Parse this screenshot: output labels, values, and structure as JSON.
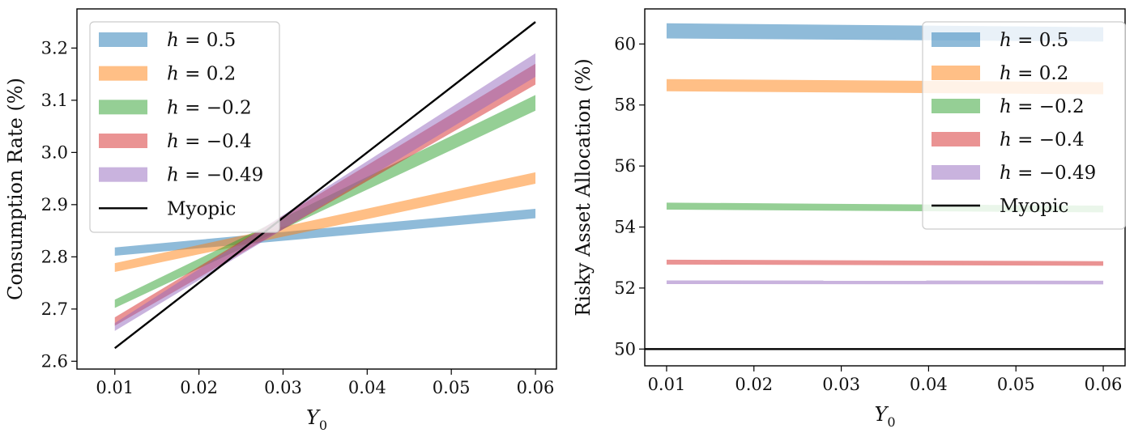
{
  "chart_data": [
    {
      "type": "line",
      "xlabel": "Y0",
      "ylabel": "Consumption Rate (%)",
      "xlim": [
        0.0055,
        0.0625
      ],
      "ylim": [
        2.585,
        3.275
      ],
      "xticks": [
        0.01,
        0.02,
        0.03,
        0.04,
        0.05,
        0.06
      ],
      "xtick_labels": [
        "0.01",
        "0.02",
        "0.03",
        "0.04",
        "0.05",
        "0.06"
      ],
      "yticks": [
        2.6,
        2.7,
        2.8,
        2.9,
        3.0,
        3.1,
        3.2
      ],
      "ytick_labels": [
        "2.6",
        "2.7",
        "2.8",
        "2.9",
        "3.0",
        "3.1",
        "3.2"
      ],
      "legend_position": "top-left",
      "grid": false,
      "x": [
        0.01,
        0.06
      ],
      "series": [
        {
          "name": "h = 0.5",
          "color": "#1f77b4",
          "style": "band",
          "lower": [
            2.802,
            2.874
          ],
          "upper": [
            2.818,
            2.892
          ]
        },
        {
          "name": "h = 0.2",
          "color": "#ff7f0e",
          "style": "band",
          "lower": [
            2.771,
            2.94
          ],
          "upper": [
            2.788,
            2.962
          ]
        },
        {
          "name": "h = −0.2",
          "color": "#2ca02c",
          "style": "band",
          "lower": [
            2.702,
            3.08
          ],
          "upper": [
            2.718,
            3.11
          ]
        },
        {
          "name": "h = −0.4",
          "color": "#d62728",
          "style": "band",
          "lower": [
            2.668,
            3.13
          ],
          "upper": [
            2.684,
            3.17
          ]
        },
        {
          "name": "h = −0.49",
          "color": "#9467bd",
          "style": "band",
          "lower": [
            2.658,
            3.145
          ],
          "upper": [
            2.673,
            3.19
          ]
        },
        {
          "name": "Myopic",
          "color": "#000000",
          "style": "line",
          "values": [
            2.625,
            3.25
          ]
        }
      ]
    },
    {
      "type": "line",
      "xlabel": "Y0",
      "ylabel": "Risky Asset Allocation (%)",
      "xlim": [
        0.0075,
        0.0625
      ],
      "ylim": [
        49.45,
        61.15
      ],
      "xticks": [
        0.01,
        0.02,
        0.03,
        0.04,
        0.05,
        0.06
      ],
      "xtick_labels": [
        "0.01",
        "0.02",
        "0.03",
        "0.04",
        "0.05",
        "0.06"
      ],
      "yticks": [
        50,
        52,
        54,
        56,
        58,
        60
      ],
      "ytick_labels": [
        "50",
        "52",
        "54",
        "56",
        "58",
        "60"
      ],
      "legend_position": "top-right",
      "grid": false,
      "x": [
        0.01,
        0.06
      ],
      "series": [
        {
          "name": "h = 0.5",
          "color": "#1f77b4",
          "style": "band",
          "lower": [
            60.18,
            60.08
          ],
          "upper": [
            60.68,
            60.55
          ]
        },
        {
          "name": "h = 0.2",
          "color": "#ff7f0e",
          "style": "band",
          "lower": [
            58.45,
            58.35
          ],
          "upper": [
            58.85,
            58.75
          ]
        },
        {
          "name": "h = −0.2",
          "color": "#2ca02c",
          "style": "band",
          "lower": [
            54.57,
            54.48
          ],
          "upper": [
            54.8,
            54.7
          ]
        },
        {
          "name": "h = −0.4",
          "color": "#d62728",
          "style": "band",
          "lower": [
            52.77,
            52.73
          ],
          "upper": [
            52.93,
            52.88
          ]
        },
        {
          "name": "h = −0.49",
          "color": "#9467bd",
          "style": "band",
          "lower": [
            52.13,
            52.12
          ],
          "upper": [
            52.25,
            52.24
          ]
        },
        {
          "name": "Myopic",
          "color": "#000000",
          "style": "line",
          "values": [
            50.0,
            50.0
          ]
        }
      ]
    }
  ],
  "legend": {
    "items": [
      {
        "var": "h",
        "rhs": " = 0.5"
      },
      {
        "var": "h",
        "rhs": " = 0.2"
      },
      {
        "var": "h",
        "rhs": " = −0.2"
      },
      {
        "var": "h",
        "rhs": " = −0.4"
      },
      {
        "var": "h",
        "rhs": " = −0.49"
      },
      {
        "var": "",
        "rhs": "Myopic"
      }
    ]
  },
  "xlabel_display": {
    "var": "Y",
    "sub": "0"
  }
}
